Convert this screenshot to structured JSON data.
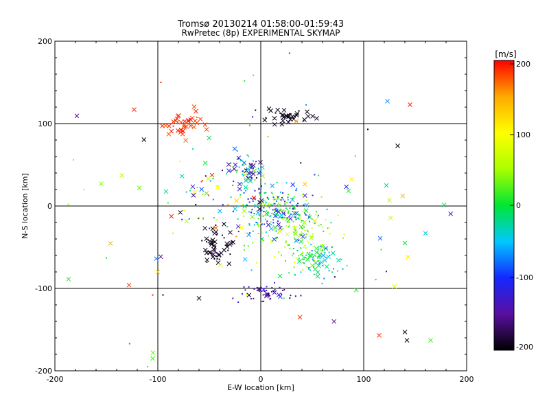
{
  "chart_data": {
    "type": "scatter",
    "title": "Tromsø 20130214 01:58:00-01:59:43",
    "subtitle": "RwPretec (8p) EXPERIMENTAL SKYMAP",
    "xlabel": "E-W location [km]",
    "ylabel": "N-S location [km]",
    "xlim": [
      -200,
      200
    ],
    "ylim": [
      -200,
      200
    ],
    "xticks": [
      "-200",
      "-100",
      "0",
      "100",
      "200"
    ],
    "yticks": [
      "-200",
      "-100",
      "0",
      "100",
      "200"
    ],
    "grid": true,
    "colorbar": {
      "label": "[m/s]",
      "range": [
        -200,
        200
      ],
      "ticks": [
        "200",
        "100",
        "0",
        "-100",
        "-200"
      ],
      "colormap": [
        "#000000",
        "#5a0fa0",
        "#1428ff",
        "#00c8ff",
        "#00e632",
        "#aaff00",
        "#ffff00",
        "#ffaa00",
        "#ff0000"
      ]
    },
    "point_clusters": [
      {
        "label": "north-west",
        "cx": -75,
        "cy": 100,
        "sx": 10,
        "sy": 7,
        "n": 35,
        "vmin": 170,
        "vmax": 200,
        "cross_frac": 0.8
      },
      {
        "label": "north",
        "cx": 25,
        "cy": 108,
        "sx": 14,
        "sy": 5,
        "n": 40,
        "vmin": -200,
        "vmax": -185,
        "cross_frac": 0.5
      },
      {
        "label": "center",
        "cx": 18,
        "cy": -5,
        "sx": 18,
        "sy": 15,
        "n": 220,
        "vmin": -140,
        "vmax": 60,
        "cross_frac": 0.15
      },
      {
        "label": "center-east",
        "cx": 40,
        "cy": -30,
        "sx": 22,
        "sy": 18,
        "n": 120,
        "vmin": 0,
        "vmax": 90,
        "cross_frac": 0.05
      },
      {
        "label": "south-east",
        "cx": 55,
        "cy": -65,
        "sx": 12,
        "sy": 10,
        "n": 90,
        "vmin": -80,
        "vmax": 40,
        "cross_frac": 0.3
      },
      {
        "label": "north-center",
        "cx": -15,
        "cy": 45,
        "sx": 10,
        "sy": 10,
        "n": 70,
        "vmin": -200,
        "vmax": 60,
        "cross_frac": 0.4
      },
      {
        "label": "south-west",
        "cx": -42,
        "cy": -45,
        "sx": 9,
        "sy": 12,
        "n": 60,
        "vmin": -200,
        "vmax": -185,
        "cross_frac": 0.5
      },
      {
        "label": "south",
        "cx": 5,
        "cy": -105,
        "sx": 12,
        "sy": 6,
        "n": 45,
        "vmin": -200,
        "vmax": -110,
        "cross_frac": 0.3
      },
      {
        "label": "west-center",
        "cx": -50,
        "cy": 10,
        "sx": 20,
        "sy": 25,
        "n": 50,
        "vmin": -200,
        "vmax": 200,
        "cross_frac": 0.5
      },
      {
        "label": "scatter",
        "cx": 0,
        "cy": 0,
        "sx": 85,
        "sy": 75,
        "n": 70,
        "vmin": -200,
        "vmax": 200,
        "cross_frac": 0.5
      }
    ],
    "notable_points": [
      {
        "x": -123,
        "y": 117,
        "v": 190,
        "marker": "x"
      },
      {
        "x": 145,
        "y": 123,
        "v": 190,
        "marker": "x"
      },
      {
        "x": 133,
        "y": 73,
        "v": -195,
        "marker": "x"
      },
      {
        "x": 140,
        "y": -153,
        "v": -195,
        "marker": "x"
      },
      {
        "x": 142,
        "y": -163,
        "v": -195,
        "marker": "x"
      },
      {
        "x": 115,
        "y": -157,
        "v": 185,
        "marker": "x"
      },
      {
        "x": 165,
        "y": -163,
        "v": 20,
        "marker": "x"
      },
      {
        "x": 38,
        "y": -135,
        "v": 185,
        "marker": "x"
      },
      {
        "x": -128,
        "y": -96,
        "v": 185,
        "marker": "x"
      },
      {
        "x": -60,
        "y": -112,
        "v": -190,
        "marker": "x"
      },
      {
        "x": -155,
        "y": 27,
        "v": 40,
        "marker": "x"
      },
      {
        "x": -135,
        "y": 37,
        "v": 50,
        "marker": "x"
      },
      {
        "x": 125,
        "y": 7,
        "v": 60,
        "marker": "x"
      },
      {
        "x": 122,
        "y": 25,
        "v": -20,
        "marker": "x"
      },
      {
        "x": 140,
        "y": -45,
        "v": 0,
        "marker": "x"
      },
      {
        "x": 160,
        "y": -33,
        "v": -40,
        "marker": "x"
      },
      {
        "x": 143,
        "y": -62,
        "v": 110,
        "marker": "x"
      },
      {
        "x": -118,
        "y": 22,
        "v": 30,
        "marker": "x"
      },
      {
        "x": -63,
        "y": 115,
        "v": 190,
        "marker": "x"
      },
      {
        "x": -97,
        "y": 150,
        "v": 195,
        "marker": "."
      },
      {
        "x": -100,
        "y": -80,
        "v": 120,
        "marker": "x"
      },
      {
        "x": -105,
        "y": -108,
        "v": 190,
        "marker": "."
      },
      {
        "x": -95,
        "y": -108,
        "v": -200,
        "marker": "."
      },
      {
        "x": -105,
        "y": -185,
        "v": 20,
        "marker": "x"
      },
      {
        "x": -110,
        "y": -195,
        "v": 20,
        "marker": "."
      },
      {
        "x": -187,
        "y": 2,
        "v": 40,
        "marker": "."
      },
      {
        "x": -172,
        "y": 20,
        "v": 60,
        "marker": "."
      },
      {
        "x": -150,
        "y": -63,
        "v": 0,
        "marker": "."
      },
      {
        "x": -182,
        "y": 56,
        "v": 140,
        "marker": "."
      },
      {
        "x": 104,
        "y": 93,
        "v": -200,
        "marker": "."
      }
    ]
  }
}
